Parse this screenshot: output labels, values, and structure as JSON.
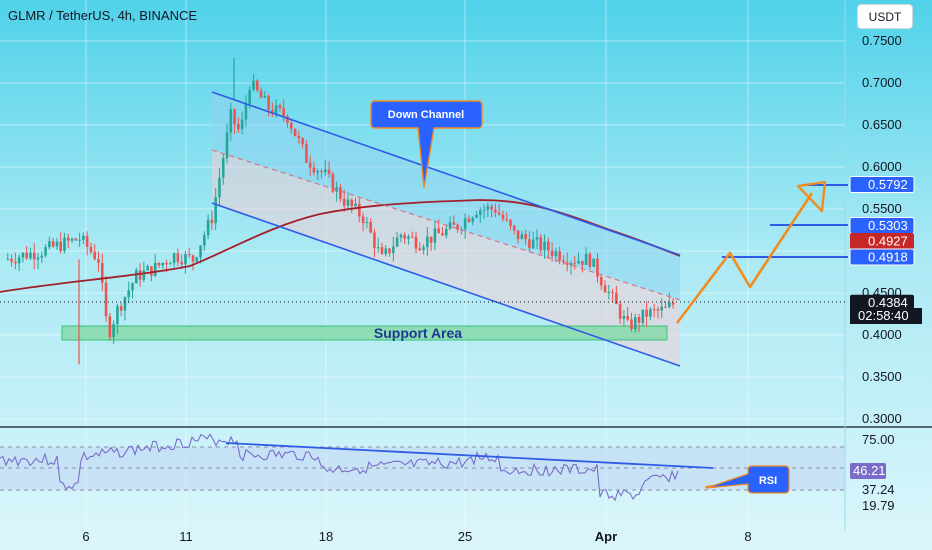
{
  "header": {
    "symbol_title": "GLMR / TetherUS, 4h, BINANCE",
    "currency": "USDT"
  },
  "colors": {
    "up": "#26a69a",
    "down": "#ef5350",
    "channel_line": "#2f5ce6",
    "ma_line": "#a3202a",
    "projection": "#f28c1e",
    "support_fill": "#7fd8a8",
    "support_text": "#1a3a8f",
    "label_blue": "#2962ff",
    "label_red": "#c62828",
    "rsi_line": "#7a6cc9"
  },
  "annotations": {
    "down_channel": "Down Channel",
    "support_area": "Support Area",
    "rsi": "RSI"
  },
  "chart_data": [
    {
      "type": "candlestick",
      "ylim": [
        0.28,
        0.76
      ],
      "y_ticks": [
        "0.7500",
        "0.7000",
        "0.6500",
        "0.6000",
        "0.5500",
        "0.5000",
        "0.4500",
        "0.4000",
        "0.3500",
        "0.3000"
      ],
      "x_tick_labels": [
        "6",
        "11",
        "18",
        "25",
        "Apr",
        "8"
      ],
      "price_labels": [
        {
          "value": 0.5792,
          "text": "0.5792",
          "style": "blue"
        },
        {
          "value": 0.5303,
          "text": "0.5303",
          "style": "blue"
        },
        {
          "value": 0.4927,
          "text": "0.4927",
          "style": "red"
        },
        {
          "value": 0.4918,
          "text": "0.4918",
          "style": "blue"
        },
        {
          "value": 0.4384,
          "text": "0.4384",
          "style": "black"
        }
      ],
      "countdown": "02:58:40",
      "close_path": [
        [
          0,
          0.49
        ],
        [
          2,
          0.5
        ],
        [
          4,
          0.515
        ],
        [
          5,
          0.49
        ],
        [
          5.5,
          0.4
        ],
        [
          6,
          0.43
        ],
        [
          7,
          0.47
        ],
        [
          8,
          0.48
        ],
        [
          9,
          0.495
        ],
        [
          10,
          0.49
        ],
        [
          11,
          0.54
        ],
        [
          11.5,
          0.6
        ],
        [
          12,
          0.66
        ],
        [
          12.5,
          0.64
        ],
        [
          13,
          0.7
        ],
        [
          14,
          0.67
        ],
        [
          15,
          0.66
        ],
        [
          16,
          0.61
        ],
        [
          17,
          0.59
        ],
        [
          18,
          0.56
        ],
        [
          19,
          0.54
        ],
        [
          20,
          0.49
        ],
        [
          21,
          0.52
        ],
        [
          22,
          0.51
        ],
        [
          23,
          0.52
        ],
        [
          24,
          0.53
        ],
        [
          25,
          0.55
        ],
        [
          26,
          0.55
        ],
        [
          27,
          0.52
        ],
        [
          28,
          0.51
        ],
        [
          29,
          0.5
        ],
        [
          30,
          0.49
        ],
        [
          31,
          0.49
        ],
        [
          32,
          0.45
        ],
        [
          33,
          0.41
        ],
        [
          34,
          0.425
        ],
        [
          35,
          0.43
        ],
        [
          35.5,
          0.4384
        ]
      ]
    },
    {
      "type": "line",
      "name": "RSI",
      "y_ticks": [
        "75.00",
        "37.24",
        "19.79"
      ],
      "current_value": "46.21"
    }
  ]
}
